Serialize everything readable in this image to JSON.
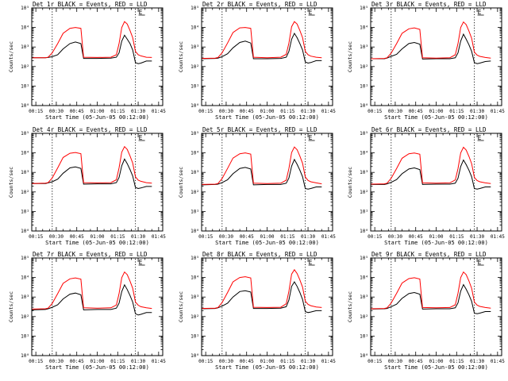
{
  "chart_data": [
    {
      "type": "line",
      "title": "Det 1r BLACK = Events, RED = LLD",
      "xlabel": "Start Time (05-Jun-05 00:12:00)",
      "ylabel": "Counts/sec",
      "x_tick_labels": [
        "00:15",
        "00:30",
        "00:45",
        "01:00",
        "01:15",
        "01:30",
        "01:45"
      ],
      "y_tick_labels": [
        "10⁰",
        "10¹",
        "10²",
        "10³",
        "10⁴",
        "10⁵"
      ],
      "ylim": [
        1,
        100000
      ],
      "y_scale": "log",
      "vertical_markers_minutes": [
        27,
        88
      ],
      "flag_text": "E",
      "x_minutes": [
        12,
        22,
        24,
        27,
        31,
        35,
        40,
        44,
        48,
        50,
        60,
        70,
        74,
        76,
        78,
        80,
        82,
        84,
        86,
        88,
        90,
        92,
        96,
        100
      ],
      "series": [
        {
          "name": "Events",
          "color": "#000000",
          "values": [
            280,
            280,
            290,
            320,
            400,
            800,
            1500,
            1800,
            1500,
            260,
            260,
            270,
            300,
            500,
            2000,
            4000,
            2500,
            1500,
            700,
            160,
            140,
            150,
            190,
            190
          ]
        },
        {
          "name": "LLD",
          "color": "#ff0000",
          "values": [
            280,
            280,
            300,
            500,
            1500,
            5000,
            9000,
            10000,
            9000,
            300,
            290,
            300,
            400,
            1500,
            10000,
            20000,
            15000,
            7000,
            3000,
            600,
            400,
            350,
            300,
            290
          ]
        }
      ]
    },
    {
      "type": "line",
      "title": "Det 2r BLACK = Events, RED = LLD",
      "xlabel": "Start Time (05-Jun-05 00:12:00)",
      "ylabel": "Counts/sec",
      "x_tick_labels": [
        "00:15",
        "00:30",
        "00:45",
        "01:00",
        "01:15",
        "01:30",
        "01:45"
      ],
      "y_tick_labels": [
        "10⁰",
        "10¹",
        "10²",
        "10³",
        "10⁴",
        "10⁵"
      ],
      "ylim": [
        1,
        100000
      ],
      "y_scale": "log",
      "vertical_markers_minutes": [
        27,
        88
      ],
      "flag_text": "E",
      "x_minutes": [
        12,
        22,
        24,
        27,
        31,
        35,
        40,
        44,
        48,
        50,
        60,
        70,
        74,
        76,
        78,
        80,
        82,
        84,
        86,
        88,
        90,
        92,
        96,
        100
      ],
      "series": [
        {
          "name": "Events",
          "color": "#000000",
          "values": [
            250,
            260,
            270,
            320,
            450,
            900,
            1700,
            2000,
            1600,
            250,
            250,
            260,
            300,
            600,
            2500,
            5000,
            3000,
            1500,
            700,
            170,
            150,
            160,
            200,
            200
          ]
        },
        {
          "name": "LLD",
          "color": "#ff0000",
          "values": [
            260,
            270,
            290,
            500,
            1600,
            5500,
            9500,
            10000,
            9000,
            300,
            280,
            300,
            420,
            1600,
            11000,
            20000,
            15000,
            7000,
            3000,
            600,
            400,
            340,
            300,
            280
          ]
        }
      ]
    },
    {
      "type": "line",
      "title": "Det 3r BLACK = Events, RED = LLD",
      "xlabel": "Start Time (05-Jun-05 00:12:00)",
      "ylabel": "Counts/sec",
      "x_tick_labels": [
        "00:15",
        "00:30",
        "00:45",
        "01:00",
        "01:15",
        "01:30",
        "01:45"
      ],
      "y_tick_labels": [
        "10⁰",
        "10¹",
        "10²",
        "10³",
        "10⁴",
        "10⁵"
      ],
      "ylim": [
        1,
        100000
      ],
      "y_scale": "log",
      "vertical_markers_minutes": [
        27,
        88
      ],
      "flag_text": "E",
      "x_minutes": [
        12,
        22,
        24,
        27,
        31,
        35,
        40,
        44,
        48,
        50,
        60,
        70,
        74,
        76,
        78,
        80,
        82,
        84,
        86,
        88,
        90,
        92,
        96,
        100
      ],
      "series": [
        {
          "name": "Events",
          "color": "#000000",
          "values": [
            250,
            250,
            270,
            330,
            420,
            800,
            1500,
            1700,
            1400,
            240,
            250,
            250,
            280,
            500,
            2000,
            4500,
            2500,
            1300,
            600,
            160,
            140,
            150,
            180,
            190
          ]
        },
        {
          "name": "LLD",
          "color": "#ff0000",
          "values": [
            250,
            260,
            280,
            480,
            1500,
            5000,
            8500,
            9500,
            8000,
            280,
            270,
            280,
            400,
            1500,
            10000,
            19000,
            14000,
            6500,
            2800,
            550,
            380,
            330,
            290,
            270
          ]
        }
      ]
    },
    {
      "type": "line",
      "title": "Det 4r BLACK = Events, RED = LLD",
      "xlabel": "Start Time (05-Jun-05 00:12:00)",
      "ylabel": "Counts/sec",
      "x_tick_labels": [
        "00:15",
        "00:30",
        "00:45",
        "01:00",
        "01:15",
        "01:30",
        "01:45"
      ],
      "y_tick_labels": [
        "10⁰",
        "10¹",
        "10²",
        "10³",
        "10⁴",
        "10⁵"
      ],
      "ylim": [
        1,
        100000
      ],
      "y_scale": "log",
      "vertical_markers_minutes": [
        27,
        88
      ],
      "flag_text": "E",
      "x_minutes": [
        12,
        22,
        24,
        27,
        31,
        35,
        40,
        44,
        48,
        50,
        60,
        70,
        74,
        76,
        78,
        80,
        82,
        84,
        86,
        88,
        90,
        92,
        96,
        100
      ],
      "series": [
        {
          "name": "Events",
          "color": "#000000",
          "values": [
            270,
            270,
            290,
            330,
            450,
            900,
            1700,
            1900,
            1600,
            250,
            260,
            260,
            300,
            550,
            2200,
            4800,
            2800,
            1400,
            650,
            170,
            150,
            160,
            190,
            190
          ]
        },
        {
          "name": "LLD",
          "color": "#ff0000",
          "values": [
            270,
            280,
            300,
            520,
            1700,
            5800,
            9500,
            10500,
            9000,
            300,
            290,
            300,
            420,
            1700,
            11000,
            21000,
            15000,
            7000,
            3000,
            600,
            400,
            350,
            300,
            280
          ]
        }
      ]
    },
    {
      "type": "line",
      "title": "Det 5r BLACK = Events, RED = LLD",
      "xlabel": "Start Time (05-Jun-05 00:12:00)",
      "ylabel": "Counts/sec",
      "x_tick_labels": [
        "00:15",
        "00:30",
        "00:45",
        "01:00",
        "01:15",
        "01:30",
        "01:45"
      ],
      "y_tick_labels": [
        "10⁰",
        "10¹",
        "10²",
        "10³",
        "10⁴",
        "10⁵"
      ],
      "ylim": [
        1,
        100000
      ],
      "y_scale": "log",
      "vertical_markers_minutes": [
        27,
        88
      ],
      "flag_text": "E",
      "x_minutes": [
        12,
        22,
        24,
        27,
        31,
        35,
        40,
        44,
        48,
        50,
        60,
        70,
        74,
        76,
        78,
        80,
        82,
        84,
        86,
        88,
        90,
        92,
        96,
        100
      ],
      "series": [
        {
          "name": "Events",
          "color": "#000000",
          "values": [
            230,
            240,
            250,
            300,
            420,
            850,
            1600,
            1800,
            1500,
            230,
            240,
            240,
            280,
            520,
            2100,
            4600,
            2600,
            1300,
            600,
            150,
            140,
            150,
            180,
            180
          ]
        },
        {
          "name": "LLD",
          "color": "#ff0000",
          "values": [
            240,
            250,
            270,
            480,
            1600,
            5400,
            9000,
            10000,
            8600,
            280,
            270,
            280,
            400,
            1600,
            10500,
            20000,
            14500,
            6800,
            2900,
            580,
            390,
            330,
            290,
            260
          ]
        }
      ]
    },
    {
      "type": "line",
      "title": "Det 6r BLACK = Events, RED = LLD",
      "xlabel": "Start Time (05-Jun-05 00:12:00)",
      "ylabel": "Counts/sec",
      "x_tick_labels": [
        "00:15",
        "00:30",
        "00:45",
        "01:00",
        "01:15",
        "01:30",
        "01:45"
      ],
      "y_tick_labels": [
        "10⁰",
        "10¹",
        "10²",
        "10³",
        "10⁴",
        "10⁵"
      ],
      "ylim": [
        1,
        100000
      ],
      "y_scale": "log",
      "vertical_markers_minutes": [
        27,
        88
      ],
      "flag_text": "E",
      "x_minutes": [
        12,
        22,
        24,
        27,
        31,
        35,
        40,
        44,
        48,
        50,
        60,
        70,
        74,
        76,
        78,
        80,
        82,
        84,
        86,
        88,
        90,
        92,
        96,
        100
      ],
      "series": [
        {
          "name": "Events",
          "color": "#000000",
          "values": [
            240,
            240,
            260,
            310,
            430,
            850,
            1500,
            1700,
            1400,
            240,
            250,
            250,
            280,
            500,
            2000,
            4300,
            2500,
            1300,
            600,
            150,
            140,
            150,
            180,
            180
          ]
        },
        {
          "name": "LLD",
          "color": "#ff0000",
          "values": [
            250,
            260,
            280,
            500,
            1600,
            5300,
            9000,
            9800,
            8500,
            290,
            280,
            290,
            410,
            1550,
            10000,
            19500,
            14000,
            6600,
            2800,
            560,
            380,
            330,
            290,
            270
          ]
        }
      ]
    },
    {
      "type": "line",
      "title": "Det 7r BLACK = Events, RED = LLD",
      "xlabel": "Start Time (05-Jun-05 00:12:00)",
      "ylabel": "Counts/sec",
      "x_tick_labels": [
        "00:15",
        "00:30",
        "00:45",
        "01:00",
        "01:15",
        "01:30",
        "01:45"
      ],
      "y_tick_labels": [
        "10⁰",
        "10¹",
        "10²",
        "10³",
        "10⁴",
        "10⁵"
      ],
      "ylim": [
        1,
        100000
      ],
      "y_scale": "log",
      "vertical_markers_minutes": [
        27,
        88
      ],
      "flag_text": "E",
      "x_minutes": [
        12,
        22,
        24,
        27,
        31,
        35,
        40,
        44,
        48,
        50,
        60,
        70,
        74,
        76,
        78,
        80,
        82,
        84,
        86,
        88,
        90,
        92,
        96,
        100
      ],
      "series": [
        {
          "name": "Events",
          "color": "#000000",
          "values": [
            220,
            230,
            250,
            300,
            400,
            800,
            1400,
            1600,
            1300,
            220,
            230,
            230,
            270,
            480,
            1900,
            4200,
            2400,
            1200,
            550,
            140,
            120,
            130,
            160,
            160
          ]
        },
        {
          "name": "LLD",
          "color": "#ff0000",
          "values": [
            240,
            250,
            270,
            470,
            1500,
            5000,
            8500,
            9500,
            8200,
            280,
            270,
            280,
            390,
            1500,
            9800,
            19000,
            14000,
            6500,
            2800,
            560,
            380,
            320,
            280,
            260
          ]
        }
      ]
    },
    {
      "type": "line",
      "title": "Det 8r BLACK = Events, RED = LLD",
      "xlabel": "Start Time (05-Jun-05 00:12:00)",
      "ylabel": "Counts/sec",
      "x_tick_labels": [
        "00:15",
        "00:30",
        "00:45",
        "01:00",
        "01:15",
        "01:30",
        "01:45"
      ],
      "y_tick_labels": [
        "10⁰",
        "10¹",
        "10²",
        "10³",
        "10⁴",
        "10⁵"
      ],
      "ylim": [
        1,
        100000
      ],
      "y_scale": "log",
      "vertical_markers_minutes": [
        27,
        88
      ],
      "flag_text": "E",
      "x_minutes": [
        12,
        22,
        24,
        27,
        31,
        35,
        40,
        44,
        48,
        50,
        60,
        70,
        74,
        76,
        78,
        80,
        82,
        84,
        86,
        88,
        90,
        92,
        96,
        100
      ],
      "series": [
        {
          "name": "Events",
          "color": "#000000",
          "values": [
            250,
            260,
            280,
            340,
            480,
            1000,
            1900,
            2100,
            1800,
            260,
            260,
            270,
            320,
            700,
            3500,
            6000,
            3500,
            1700,
            750,
            180,
            160,
            170,
            200,
            200
          ]
        },
        {
          "name": "LLD",
          "color": "#ff0000",
          "values": [
            260,
            270,
            290,
            520,
            1700,
            6000,
            10000,
            11000,
            9500,
            300,
            290,
            300,
            450,
            2000,
            15000,
            25000,
            16000,
            7500,
            3200,
            620,
            420,
            360,
            310,
            290
          ]
        }
      ]
    },
    {
      "type": "line",
      "title": "Det 9r BLACK = Events, RED = LLD",
      "xlabel": "Start Time (05-Jun-05 00:12:00)",
      "ylabel": "Counts/sec",
      "x_tick_labels": [
        "00:15",
        "00:30",
        "00:45",
        "01:00",
        "01:15",
        "01:30",
        "01:45"
      ],
      "y_tick_labels": [
        "10⁰",
        "10¹",
        "10²",
        "10³",
        "10⁴",
        "10⁵"
      ],
      "ylim": [
        1,
        100000
      ],
      "y_scale": "log",
      "vertical_markers_minutes": [
        27,
        88
      ],
      "flag_text": "E",
      "x_minutes": [
        12,
        22,
        24,
        27,
        31,
        35,
        40,
        44,
        48,
        50,
        60,
        70,
        74,
        76,
        78,
        80,
        82,
        84,
        86,
        88,
        90,
        92,
        96,
        100
      ],
      "series": [
        {
          "name": "Events",
          "color": "#000000",
          "values": [
            240,
            250,
            260,
            320,
            430,
            850,
            1500,
            1700,
            1400,
            240,
            250,
            250,
            280,
            500,
            2000,
            4300,
            2500,
            1300,
            600,
            150,
            140,
            150,
            180,
            180
          ]
        },
        {
          "name": "LLD",
          "color": "#ff0000",
          "values": [
            250,
            260,
            280,
            490,
            1550,
            5200,
            8800,
            9700,
            8400,
            290,
            280,
            290,
            400,
            1550,
            10000,
            19000,
            14000,
            6600,
            2800,
            560,
            380,
            330,
            290,
            270
          ]
        }
      ]
    }
  ]
}
